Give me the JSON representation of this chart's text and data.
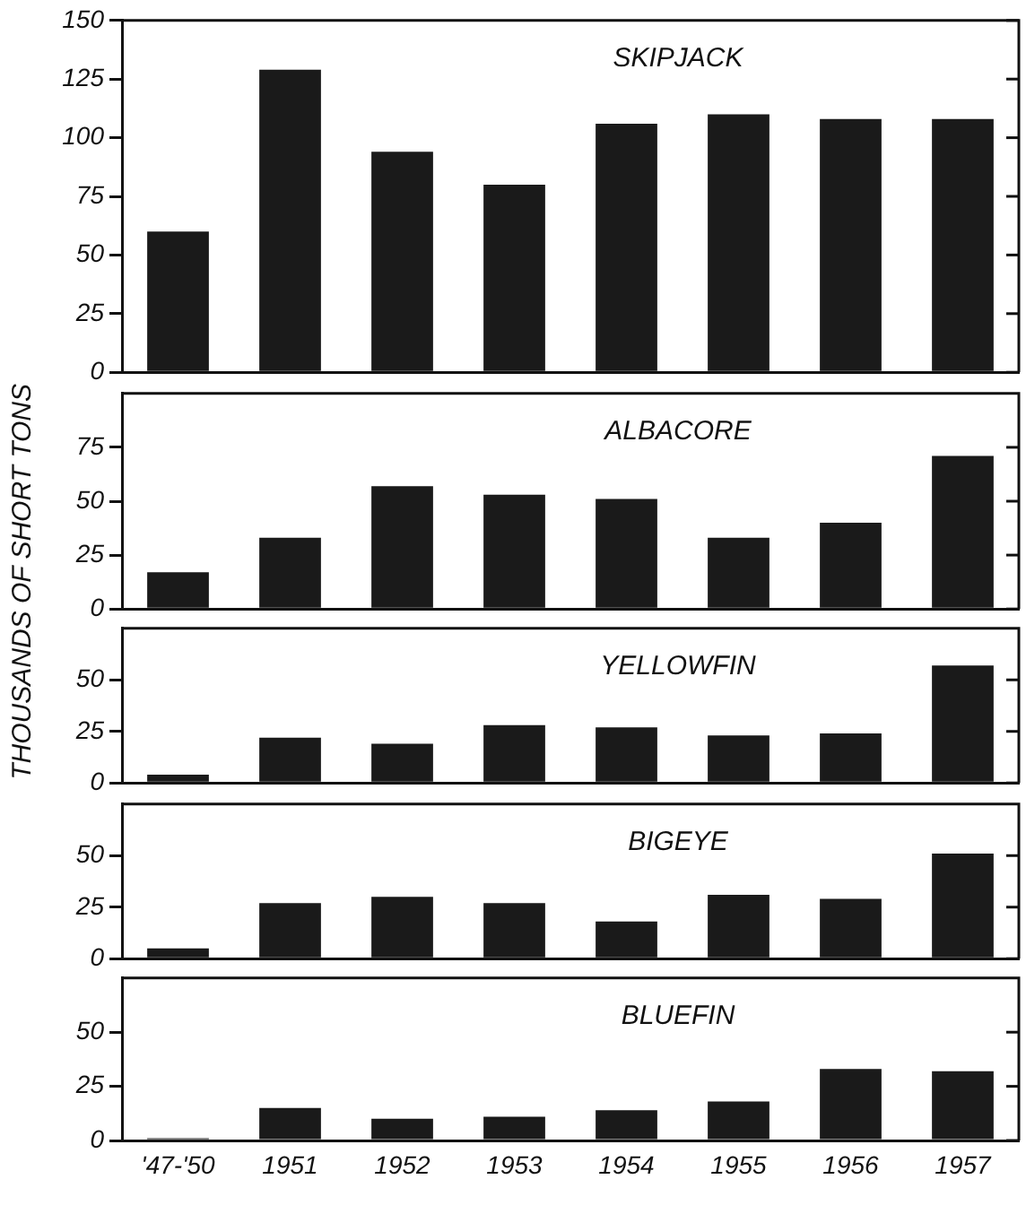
{
  "chart_data": [
    {
      "type": "bar",
      "title": "SKIPJACK",
      "categories": [
        null,
        null,
        null,
        null,
        null,
        null,
        null,
        null
      ],
      "values": [
        60,
        129,
        94,
        80,
        106,
        110,
        108,
        108
      ],
      "color": "#1a1a1a",
      "ylim": [
        0,
        150
      ],
      "yticks": [
        0,
        25,
        50,
        75,
        100,
        125,
        150
      ],
      "grid": false,
      "tick_labels": "y"
    },
    {
      "type": "bar",
      "title": "ALBACORE",
      "categories": [
        null,
        null,
        null,
        null,
        null,
        null,
        null,
        null
      ],
      "values": [
        17,
        33,
        57,
        53,
        51,
        33,
        40,
        71
      ],
      "color": "#1a1a1a",
      "ylim": [
        0,
        100
      ],
      "yticks": [
        0,
        25,
        50,
        75
      ],
      "grid": false,
      "tick_labels": "y"
    },
    {
      "type": "bar",
      "title": "YELLOWFIN",
      "ylabel": "THOUSANDS OF SHORT TONS",
      "categories": [
        null,
        null,
        null,
        null,
        null,
        null,
        null,
        null
      ],
      "values": [
        4,
        22,
        19,
        28,
        27,
        23,
        24,
        57
      ],
      "color": "#1a1a1a",
      "ylim": [
        0,
        75
      ],
      "yticks": [
        0,
        25,
        50
      ],
      "grid": false,
      "tick_labels": "y"
    },
    {
      "type": "bar",
      "title": "BIGEYE",
      "categories": [
        null,
        null,
        null,
        null,
        null,
        null,
        null,
        null
      ],
      "values": [
        5,
        27,
        30,
        27,
        18,
        31,
        29,
        51
      ],
      "color": "#1a1a1a",
      "ylim": [
        0,
        75
      ],
      "yticks": [
        0,
        25,
        50
      ],
      "grid": false,
      "tick_labels": "y"
    },
    {
      "type": "bar",
      "title": "BLUEFIN",
      "categories": [
        "'47-'50",
        "1951",
        "1952",
        "1953",
        "1954",
        "1955",
        "1956",
        "1957"
      ],
      "values": [
        1,
        15,
        10,
        11,
        14,
        18,
        33,
        32
      ],
      "color": "#1a1a1a",
      "ylim": [
        0,
        75
      ],
      "yticks": [
        0,
        25,
        50
      ],
      "grid": false
    }
  ]
}
